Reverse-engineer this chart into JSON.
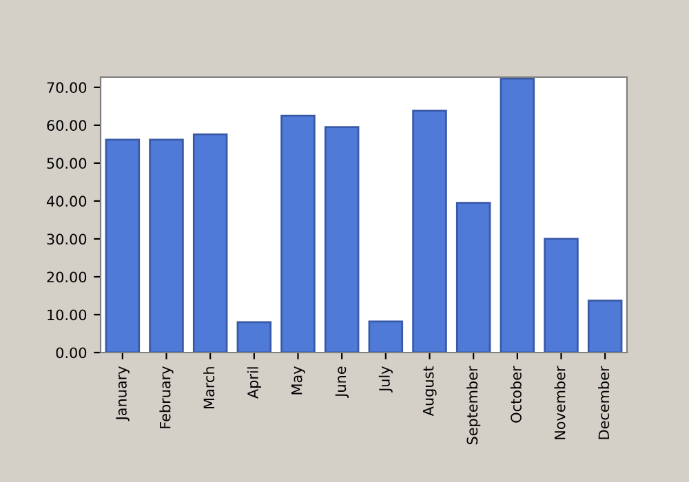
{
  "chart_data": {
    "type": "bar",
    "categories": [
      "January",
      "February",
      "March",
      "April",
      "May",
      "June",
      "July",
      "August",
      "September",
      "October",
      "November",
      "December"
    ],
    "values": [
      56.2,
      56.2,
      57.6,
      8.0,
      62.5,
      59.5,
      8.2,
      63.8,
      39.5,
      72.3,
      30.0,
      13.7
    ],
    "color": "#4f7ad8",
    "ylim": [
      0,
      72.7
    ],
    "yticks": [
      {
        "value": 0,
        "label": "0.00"
      },
      {
        "value": 10,
        "label": "10.00"
      },
      {
        "value": 20,
        "label": "20.00"
      },
      {
        "value": 30,
        "label": "30.00"
      },
      {
        "value": 40,
        "label": "40.00"
      },
      {
        "value": 50,
        "label": "50.00"
      },
      {
        "value": 60,
        "label": "60.00"
      },
      {
        "value": 70,
        "label": "70.00"
      }
    ],
    "grid": false
  }
}
